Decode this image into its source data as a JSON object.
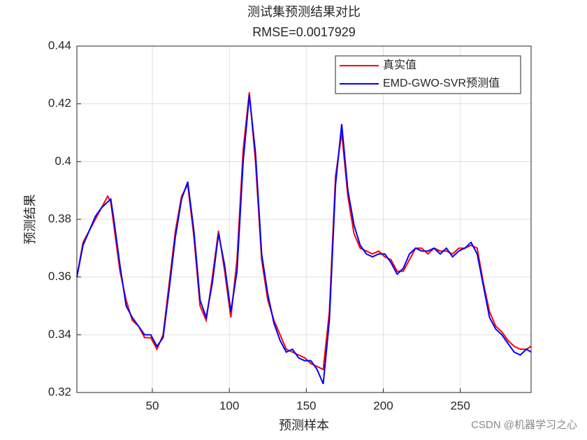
{
  "chart_data": {
    "type": "line",
    "title": "测试集预测结果对比",
    "subtitle": "RMSE=0.0017929",
    "x_label": "预测样本",
    "y_label": "预测结果",
    "watermark": "CSDN @机器学习之心",
    "x": [
      1,
      5,
      9,
      13,
      17,
      21,
      23,
      25,
      29,
      33,
      37,
      41,
      45,
      49,
      53,
      57,
      61,
      65,
      69,
      73,
      77,
      81,
      85,
      89,
      93,
      97,
      101,
      105,
      109,
      113,
      117,
      121,
      125,
      129,
      133,
      137,
      141,
      145,
      149,
      153,
      157,
      161,
      165,
      169,
      173,
      177,
      181,
      185,
      189,
      193,
      197,
      201,
      205,
      209,
      213,
      217,
      221,
      225,
      229,
      233,
      237,
      241,
      245,
      249,
      253,
      257,
      261,
      265,
      269,
      273,
      277,
      281,
      285,
      289,
      293,
      296
    ],
    "series": [
      {
        "name": "真实值",
        "color": "#ff0000",
        "values": [
          0.36,
          0.372,
          0.376,
          0.38,
          0.384,
          0.388,
          0.386,
          0.378,
          0.362,
          0.352,
          0.345,
          0.343,
          0.339,
          0.339,
          0.335,
          0.34,
          0.358,
          0.376,
          0.388,
          0.392,
          0.374,
          0.35,
          0.345,
          0.36,
          0.376,
          0.362,
          0.346,
          0.366,
          0.404,
          0.424,
          0.4,
          0.366,
          0.352,
          0.345,
          0.34,
          0.335,
          0.334,
          0.333,
          0.332,
          0.33,
          0.329,
          0.328,
          0.348,
          0.395,
          0.41,
          0.388,
          0.375,
          0.37,
          0.369,
          0.368,
          0.369,
          0.367,
          0.366,
          0.362,
          0.362,
          0.366,
          0.37,
          0.37,
          0.368,
          0.37,
          0.369,
          0.369,
          0.368,
          0.37,
          0.37,
          0.371,
          0.37,
          0.358,
          0.348,
          0.343,
          0.341,
          0.338,
          0.336,
          0.335,
          0.335,
          0.336
        ]
      },
      {
        "name": "EMD-GWO-SVR预测值",
        "color": "#0000ff",
        "values": [
          0.36,
          0.371,
          0.376,
          0.381,
          0.384,
          0.386,
          0.387,
          0.38,
          0.364,
          0.35,
          0.346,
          0.343,
          0.34,
          0.34,
          0.336,
          0.339,
          0.356,
          0.374,
          0.387,
          0.393,
          0.376,
          0.352,
          0.346,
          0.358,
          0.375,
          0.364,
          0.348,
          0.362,
          0.4,
          0.423,
          0.403,
          0.368,
          0.354,
          0.344,
          0.338,
          0.334,
          0.335,
          0.332,
          0.331,
          0.331,
          0.328,
          0.323,
          0.345,
          0.392,
          0.413,
          0.39,
          0.378,
          0.371,
          0.368,
          0.367,
          0.368,
          0.368,
          0.365,
          0.361,
          0.363,
          0.368,
          0.37,
          0.369,
          0.369,
          0.37,
          0.368,
          0.37,
          0.367,
          0.369,
          0.37,
          0.372,
          0.368,
          0.357,
          0.346,
          0.342,
          0.34,
          0.337,
          0.334,
          0.333,
          0.335,
          0.334
        ]
      }
    ],
    "xlim": [
      1,
      296
    ],
    "xticks": [
      50,
      100,
      150,
      200,
      250
    ],
    "ylim": [
      0.32,
      0.44
    ],
    "yticks": [
      0.32,
      0.34,
      0.36,
      0.38,
      0.4,
      0.42,
      0.44
    ],
    "grid": true,
    "legend": "northeast"
  }
}
